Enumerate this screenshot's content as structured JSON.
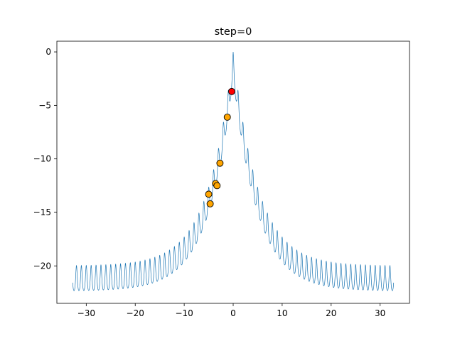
{
  "chart_data": {
    "type": "line",
    "title": "step=0",
    "xlabel": "",
    "ylabel": "",
    "xlim": [
      -36,
      36
    ],
    "ylim": [
      -23.5,
      1.0
    ],
    "xticks": [
      {
        "value": -30,
        "label": "−30"
      },
      {
        "value": -20,
        "label": "−20"
      },
      {
        "value": -10,
        "label": "−10"
      },
      {
        "value": 0,
        "label": "0"
      },
      {
        "value": 10,
        "label": "10"
      },
      {
        "value": 20,
        "label": "20"
      },
      {
        "value": 30,
        "label": "30"
      }
    ],
    "yticks": [
      {
        "value": 0,
        "label": "0"
      },
      {
        "value": -5,
        "label": "−5"
      },
      {
        "value": -10,
        "label": "−10"
      },
      {
        "value": -15,
        "label": "−15"
      },
      {
        "value": -20,
        "label": "−20"
      }
    ],
    "grid": false,
    "series": [
      {
        "kind": "function",
        "function": "ackley_1d",
        "x_range": [
          -32.768,
          32.768
        ],
        "color": "#1f77b4"
      }
    ],
    "scatter_points": [
      {
        "x": -5.0,
        "y": -13.3,
        "color": "#ffa500"
      },
      {
        "x": -4.7,
        "y": -14.2,
        "color": "#ffa500"
      },
      {
        "x": -3.6,
        "y": -12.3,
        "color": "#ffa500"
      },
      {
        "x": -3.3,
        "y": -12.5,
        "color": "#ffa500"
      },
      {
        "x": -2.7,
        "y": -10.4,
        "color": "#ffa500"
      },
      {
        "x": -1.2,
        "y": -6.1,
        "color": "#ffa500"
      },
      {
        "x": -0.3,
        "y": -3.7,
        "color": "#ff0000"
      }
    ]
  }
}
